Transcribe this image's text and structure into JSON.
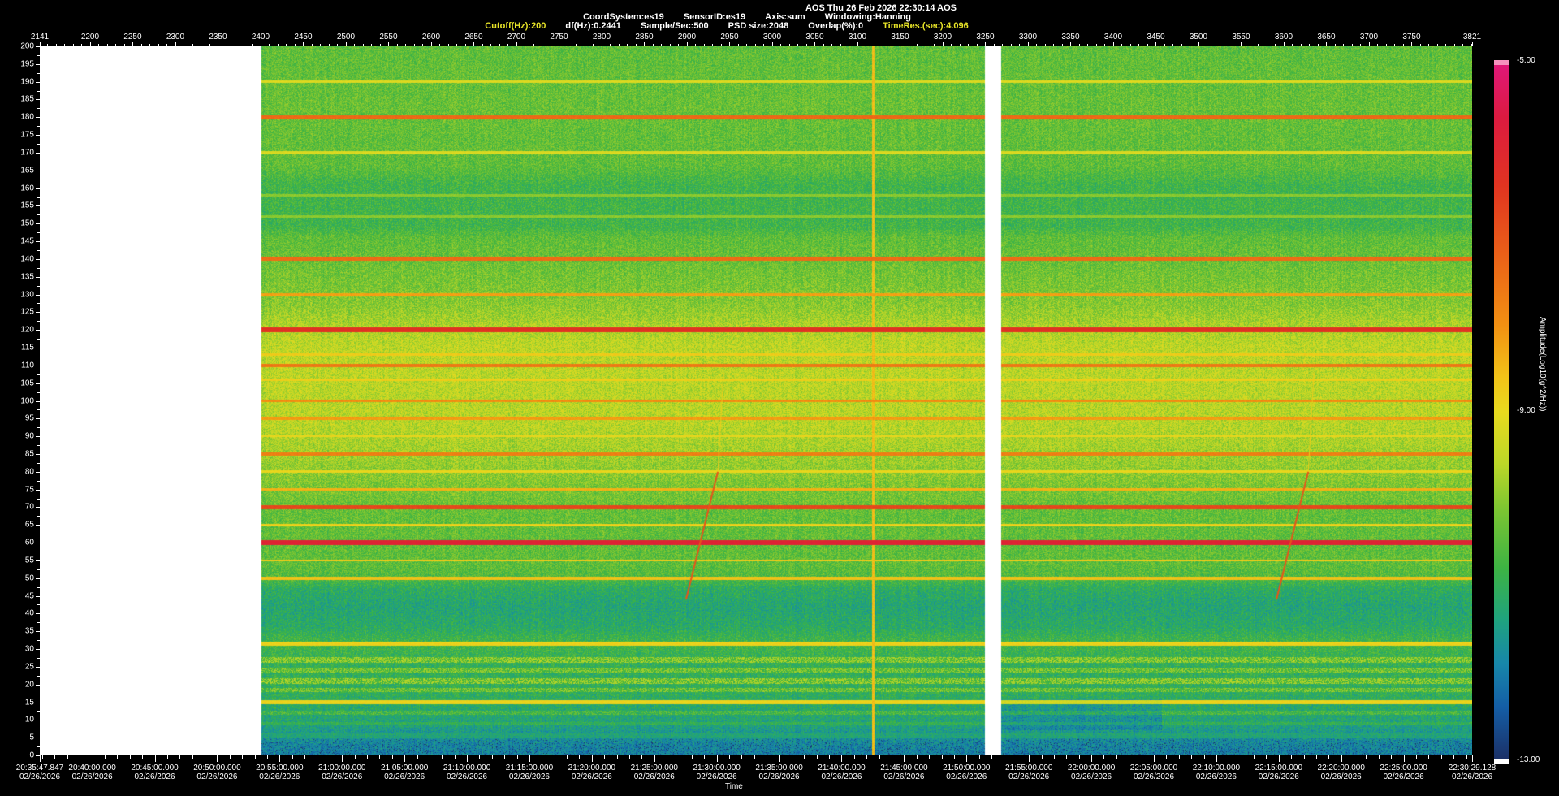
{
  "header": {
    "title": "AOS  Thu 26 Feb 2026 22:30:14  AOS",
    "params_line1": [
      "CoordSystem:es19",
      "SensorID:es19",
      "Axis:sum",
      "Windowing:Hanning"
    ],
    "params_line2": [
      {
        "text": "Cutoff(Hz):200",
        "highlight": true
      },
      {
        "text": "df(Hz):0.2441",
        "highlight": false
      },
      {
        "text": "Sample/Sec:500",
        "highlight": false
      },
      {
        "text": "PSD size:2048",
        "highlight": false
      },
      {
        "text": "Overlap(%):0",
        "highlight": false
      },
      {
        "text": "TimeRes.(sec):4.096",
        "highlight": true
      }
    ],
    "text_color": "#ffffff",
    "highlight_color": "#e8e428"
  },
  "chart_data": {
    "type": "heatmap",
    "subtype": "spectrogram",
    "title": "AOS Thu 26 Feb 2026 22:30:14 AOS",
    "x_axis_top": {
      "range": [
        2141,
        3821
      ],
      "minor_step": 10,
      "ticks": [
        2141,
        2200,
        2250,
        2300,
        2350,
        2400,
        2450,
        2500,
        2550,
        2600,
        2650,
        2700,
        2750,
        2800,
        2850,
        2900,
        2950,
        3000,
        3050,
        3100,
        3150,
        3200,
        3250,
        3300,
        3350,
        3400,
        3450,
        3500,
        3550,
        3600,
        3650,
        3700,
        3750,
        3821
      ]
    },
    "y_axis_left": {
      "range": [
        0,
        200
      ],
      "tick_step": 5,
      "minor_step": 2.5,
      "ticks": [
        200,
        195,
        190,
        185,
        180,
        175,
        170,
        165,
        160,
        155,
        150,
        145,
        140,
        135,
        130,
        125,
        120,
        115,
        110,
        105,
        100,
        95,
        90,
        85,
        80,
        75,
        70,
        65,
        60,
        55,
        50,
        45,
        40,
        35,
        30,
        25,
        20,
        15,
        10,
        5,
        0
      ]
    },
    "x_axis_bottom": {
      "label": "Time",
      "date": "02/26/2026",
      "minor_tick_seconds": 60,
      "major_tick_seconds": 300,
      "tick_labels": [
        "20:35:47.847",
        "20:40:00.000",
        "20:45:00.000",
        "20:50:00.000",
        "20:55:00.000",
        "21:00:00.000",
        "21:05:00.000",
        "21:10:00.000",
        "21:15:00.000",
        "21:20:00.000",
        "21:25:00.000",
        "21:30:00.000",
        "21:35:00.000",
        "21:40:00.000",
        "21:45:00.000",
        "21:50:00.000",
        "21:55:00.000",
        "22:00:00.000",
        "22:05:00.000",
        "22:10:00.000",
        "22:15:00.000",
        "22:20:00.000",
        "22:25:00.000",
        "22:30:29.128"
      ]
    },
    "colorbar": {
      "label": "Amplitude(Log10(g^2/Hz))",
      "tick_labels": [
        "-5.00",
        "-9.00",
        "-13.00"
      ],
      "range": [
        -5.0,
        -13.0
      ],
      "over_color": "#f591bd",
      "under_color": "#ffffff",
      "stops": [
        [
          -13.0,
          "#1b3168"
        ],
        [
          -12.4,
          "#145ea6"
        ],
        [
          -11.9,
          "#1787a9"
        ],
        [
          -11.4,
          "#1fa37e"
        ],
        [
          -10.8,
          "#3db343"
        ],
        [
          -10.1,
          "#7fc631"
        ],
        [
          -9.6,
          "#bcd728"
        ],
        [
          -9.0,
          "#e8da1e"
        ],
        [
          -8.6,
          "#f2c318"
        ],
        [
          -8.0,
          "#f29012"
        ],
        [
          -7.2,
          "#ea6118"
        ],
        [
          -6.4,
          "#e13420"
        ],
        [
          -5.6,
          "#dc1a40"
        ],
        [
          -5.0,
          "#df1878"
        ]
      ]
    },
    "no_data_color": "#ffffff",
    "data_panels": [
      {
        "x0": 0.1542,
        "x1": 0.65986
      },
      {
        "x0": 0.6712,
        "x1": 1.0
      }
    ],
    "base_profile": [
      [
        0,
        -11.95
      ],
      [
        3,
        -11.85
      ],
      [
        6,
        -11.6
      ],
      [
        9,
        -11.35
      ],
      [
        13,
        -11.2
      ],
      [
        17,
        -11.05
      ],
      [
        27,
        -11.0
      ],
      [
        30,
        -10.8
      ],
      [
        33,
        -10.85
      ],
      [
        36,
        -11.15
      ],
      [
        42,
        -11.3
      ],
      [
        47,
        -11.1
      ],
      [
        50,
        -10.6
      ],
      [
        54,
        -10.45
      ],
      [
        68,
        -10.4
      ],
      [
        76,
        -10.15
      ],
      [
        84,
        -9.85
      ],
      [
        93,
        -9.6
      ],
      [
        115,
        -9.55
      ],
      [
        121,
        -9.7
      ],
      [
        127,
        -10.05
      ],
      [
        138,
        -10.3
      ],
      [
        146,
        -10.45
      ],
      [
        149,
        -10.8
      ],
      [
        161,
        -10.8
      ],
      [
        166,
        -10.45
      ],
      [
        183,
        -10.35
      ],
      [
        200,
        -10.45
      ]
    ],
    "noise_amp": 0.5,
    "spectral_lines": [
      {
        "f": 190,
        "v": -9.15,
        "hw": 0.4
      },
      {
        "f": 180,
        "v": -7.35,
        "hw": 0.55
      },
      {
        "f": 170,
        "v": -9.2,
        "hw": 0.4
      },
      {
        "f": 158,
        "v": -10.0,
        "hw": 0.3
      },
      {
        "f": 152,
        "v": -10.0,
        "hw": 0.3
      },
      {
        "f": 140,
        "v": -7.4,
        "hw": 0.55
      },
      {
        "f": 130,
        "v": -8.2,
        "hw": 0.45
      },
      {
        "f": 120,
        "v": -6.35,
        "hw": 0.7
      },
      {
        "f": 113,
        "v": -8.75,
        "hw": 0.3
      },
      {
        "f": 110,
        "v": -7.6,
        "hw": 0.5
      },
      {
        "f": 106,
        "v": -8.8,
        "hw": 0.3
      },
      {
        "f": 100,
        "v": -7.95,
        "hw": 0.45
      },
      {
        "f": 95,
        "v": -8.15,
        "hw": 0.45
      },
      {
        "f": 90,
        "v": -8.95,
        "hw": 0.3
      },
      {
        "f": 85,
        "v": -7.7,
        "hw": 0.5
      },
      {
        "f": 80,
        "v": -8.95,
        "hw": 0.3
      },
      {
        "f": 75,
        "v": -8.4,
        "hw": 0.35
      },
      {
        "f": 70,
        "v": -6.75,
        "hw": 0.6
      },
      {
        "f": 65,
        "v": -8.85,
        "hw": 0.3
      },
      {
        "f": 60,
        "v": -5.9,
        "hw": 0.65
      },
      {
        "f": 55,
        "v": -8.75,
        "hw": 0.3
      },
      {
        "f": 50,
        "v": -8.6,
        "hw": 0.45
      },
      {
        "f": 31.5,
        "v": -8.85,
        "hw": 0.5
      },
      {
        "f": 27,
        "v": -9.75,
        "hw": 0.8,
        "sp": 0.55
      },
      {
        "f": 24,
        "v": -9.9,
        "hw": 0.7,
        "sp": 0.5
      },
      {
        "f": 21,
        "v": -9.75,
        "hw": 0.8,
        "sp": 0.55
      },
      {
        "f": 18.5,
        "v": -9.95,
        "hw": 0.6,
        "sp": 0.5
      },
      {
        "f": 15,
        "v": -8.9,
        "hw": 0.5
      },
      {
        "f": 12,
        "v": -10.4,
        "hw": 0.5,
        "sp": 0.45
      },
      {
        "f": 9,
        "v": -10.8,
        "hw": 0.5,
        "sp": 0.4
      },
      {
        "f": 5.5,
        "v": -11.2,
        "hw": 0.6,
        "sp": 0.4
      }
    ],
    "events": {
      "vertical_line": {
        "x": 0.58163,
        "v": -8.55
      },
      "chirps": [
        {
          "x0": 0.4512,
          "f0": 44,
          "x1": 0.4734,
          "f1": 80,
          "v": -7.0,
          "ext_f1": 108,
          "ext_v": -8.8
        },
        {
          "x0": 0.8634,
          "f0": 44,
          "x1": 0.8856,
          "f1": 80,
          "v": -7.0,
          "ext_f1": 108,
          "ext_v": -8.8
        }
      ],
      "low_freq_patch": {
        "x0": 0.6712,
        "x1": 0.783,
        "f0": 7,
        "f1": 16,
        "dv": -0.5
      }
    }
  }
}
